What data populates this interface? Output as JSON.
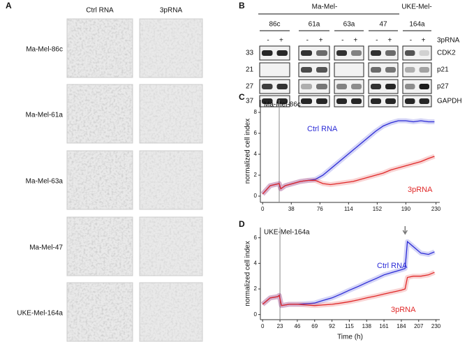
{
  "panel_a": {
    "label": "A",
    "columns": [
      "Ctrl RNA",
      "3pRNA"
    ],
    "rows": [
      "Ma-Mel-86c",
      "Ma-Mel-61a",
      "Ma-Mel-63a",
      "Ma-Mel-47",
      "UKE-Mel-164a"
    ]
  },
  "panel_b": {
    "label": "B",
    "group_header": "Ma-Mel-",
    "group_header_2": "UKE-Mel-",
    "lanes": [
      "86c",
      "61a",
      "63a",
      "47",
      "164a"
    ],
    "signs": [
      "-",
      "+",
      "-",
      "+",
      "-",
      "+",
      "-",
      "+",
      "-",
      "+"
    ],
    "treatment": "3pRNA",
    "rows": [
      {
        "mw": 33,
        "protein": "CDK2"
      },
      {
        "mw": 21,
        "protein": "p21"
      },
      {
        "mw": 27,
        "protein": "p27"
      },
      {
        "mw": 37,
        "protein": "GAPDH"
      }
    ]
  },
  "chart_data": [
    {
      "type": "line",
      "panel": "C",
      "title": "Ma-Mel-86c",
      "y_label": "normalized cell index",
      "x": [
        0,
        10,
        22,
        24,
        30,
        40,
        50,
        60,
        70,
        80,
        90,
        100,
        110,
        120,
        130,
        140,
        150,
        160,
        170,
        180,
        190,
        200,
        210,
        220,
        228
      ],
      "series": [
        {
          "name": "Ctrl RNA",
          "color": "#2b2bd6",
          "values": [
            0.2,
            1.0,
            1.2,
            0.7,
            1.0,
            1.2,
            1.4,
            1.5,
            1.6,
            2.0,
            2.6,
            3.2,
            3.8,
            4.4,
            5.0,
            5.6,
            6.2,
            6.7,
            7.0,
            7.2,
            7.2,
            7.1,
            7.2,
            7.1,
            7.1
          ]
        },
        {
          "name": "3pRNA",
          "color": "#e02828",
          "values": [
            0.2,
            1.0,
            1.2,
            0.7,
            1.0,
            1.2,
            1.4,
            1.5,
            1.5,
            1.2,
            1.1,
            1.2,
            1.3,
            1.4,
            1.6,
            1.8,
            2.0,
            2.2,
            2.5,
            2.7,
            2.9,
            3.1,
            3.3,
            3.6,
            3.8
          ]
        }
      ],
      "vlines": [
        22
      ],
      "xlim": [
        -3,
        235
      ],
      "ylim": [
        -0.6,
        9.2
      ],
      "xticks": [
        0,
        38,
        76,
        114,
        152,
        190,
        230
      ],
      "yticks": [
        0,
        2,
        4,
        6,
        8
      ]
    },
    {
      "type": "line",
      "panel": "D",
      "title": "UKE-Mel-164a",
      "y_label": "normalized cell index",
      "x_label": "Time (h)",
      "x": [
        0,
        10,
        20,
        22,
        25,
        35,
        46,
        58,
        69,
        80,
        92,
        104,
        115,
        127,
        138,
        150,
        161,
        172,
        184,
        189,
        192,
        200,
        210,
        220,
        228
      ],
      "series": [
        {
          "name": "Ctrl RNA",
          "color": "#2b2bd6",
          "values": [
            0.8,
            1.3,
            1.4,
            1.5,
            0.7,
            0.8,
            0.8,
            0.85,
            0.9,
            1.1,
            1.3,
            1.6,
            1.9,
            2.2,
            2.5,
            2.8,
            3.1,
            3.3,
            3.5,
            3.6,
            5.7,
            5.3,
            4.8,
            4.7,
            4.9
          ]
        },
        {
          "name": "3pRNA",
          "color": "#e02828",
          "values": [
            0.8,
            1.3,
            1.4,
            1.5,
            0.7,
            0.8,
            0.8,
            0.75,
            0.7,
            0.75,
            0.8,
            0.9,
            1.0,
            1.15,
            1.3,
            1.45,
            1.6,
            1.75,
            1.9,
            2.0,
            2.9,
            3.0,
            3.0,
            3.1,
            3.3
          ]
        }
      ],
      "vlines": [
        23
      ],
      "arrows": [
        189
      ],
      "xlim": [
        -3,
        235
      ],
      "ylim": [
        -0.4,
        6.8
      ],
      "xticks": [
        0,
        23,
        46,
        69,
        92,
        115,
        138,
        161,
        184,
        207,
        230
      ],
      "yticks": [
        0,
        2,
        4,
        6
      ]
    }
  ]
}
